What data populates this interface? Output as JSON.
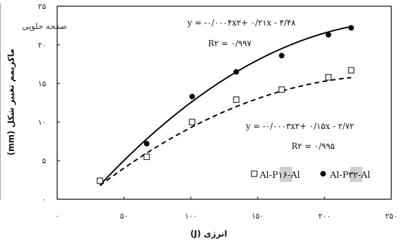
{
  "chart_data": {
    "type": "scatter",
    "panel_label": "صفحه جلویی",
    "xlabel": "انرژی (J)",
    "ylabel": "ماکزیمم تغییر شکل (mm)",
    "xlim": [
      0,
      250
    ],
    "ylim": [
      0,
      25
    ],
    "xticks": [
      0,
      50,
      100,
      150,
      200,
      250
    ],
    "xtick_labels": [
      "۰",
      "۵۰",
      "۱۰۰",
      "۱۵۰",
      "۲۰۰",
      "۲۵۰"
    ],
    "yticks": [
      0,
      5,
      10,
      15,
      20,
      25
    ],
    "ytick_labels": [
      "۰",
      "۵",
      "۱۰",
      "۱۵",
      "۲۰",
      "۲۵"
    ],
    "grid": false,
    "legend_position": "bottom-right",
    "series": [
      {
        "name": "Al-P۳۲-Al",
        "marker": "filled-circle",
        "line": "solid",
        "color": "#000000",
        "x": [
          32,
          67,
          101,
          134,
          168,
          203,
          220
        ],
        "y": [
          2.4,
          7.2,
          13.3,
          16.5,
          18.6,
          21.3,
          22.2
        ],
        "fit_coefficients": [
          -0.0004,
          0.21,
          -4.48
        ],
        "fit_range": [
          32,
          220
        ],
        "equation": "y = -۰/۰۰۰۴x۲+ ۰/۲۱x - ۴/۴۸",
        "r2": "R۲ = ۰/۹۹۷"
      },
      {
        "name": "Al-P۱۶-Al",
        "marker": "open-square",
        "line": "dashed",
        "color": "#000000",
        "x": [
          32,
          67,
          101,
          134,
          168,
          203,
          220
        ],
        "y": [
          2.4,
          5.5,
          10.0,
          12.9,
          14.2,
          15.8,
          16.7
        ],
        "fit_coefficients": [
          -0.0003,
          0.15,
          -2.72
        ],
        "fit_range": [
          32,
          220
        ],
        "equation": "y = -۰/۰۰۰۳x۲+ ۰/۱۵x - ۲/۷۲",
        "r2": "R۲ = ۰/۹۹۵"
      }
    ]
  }
}
